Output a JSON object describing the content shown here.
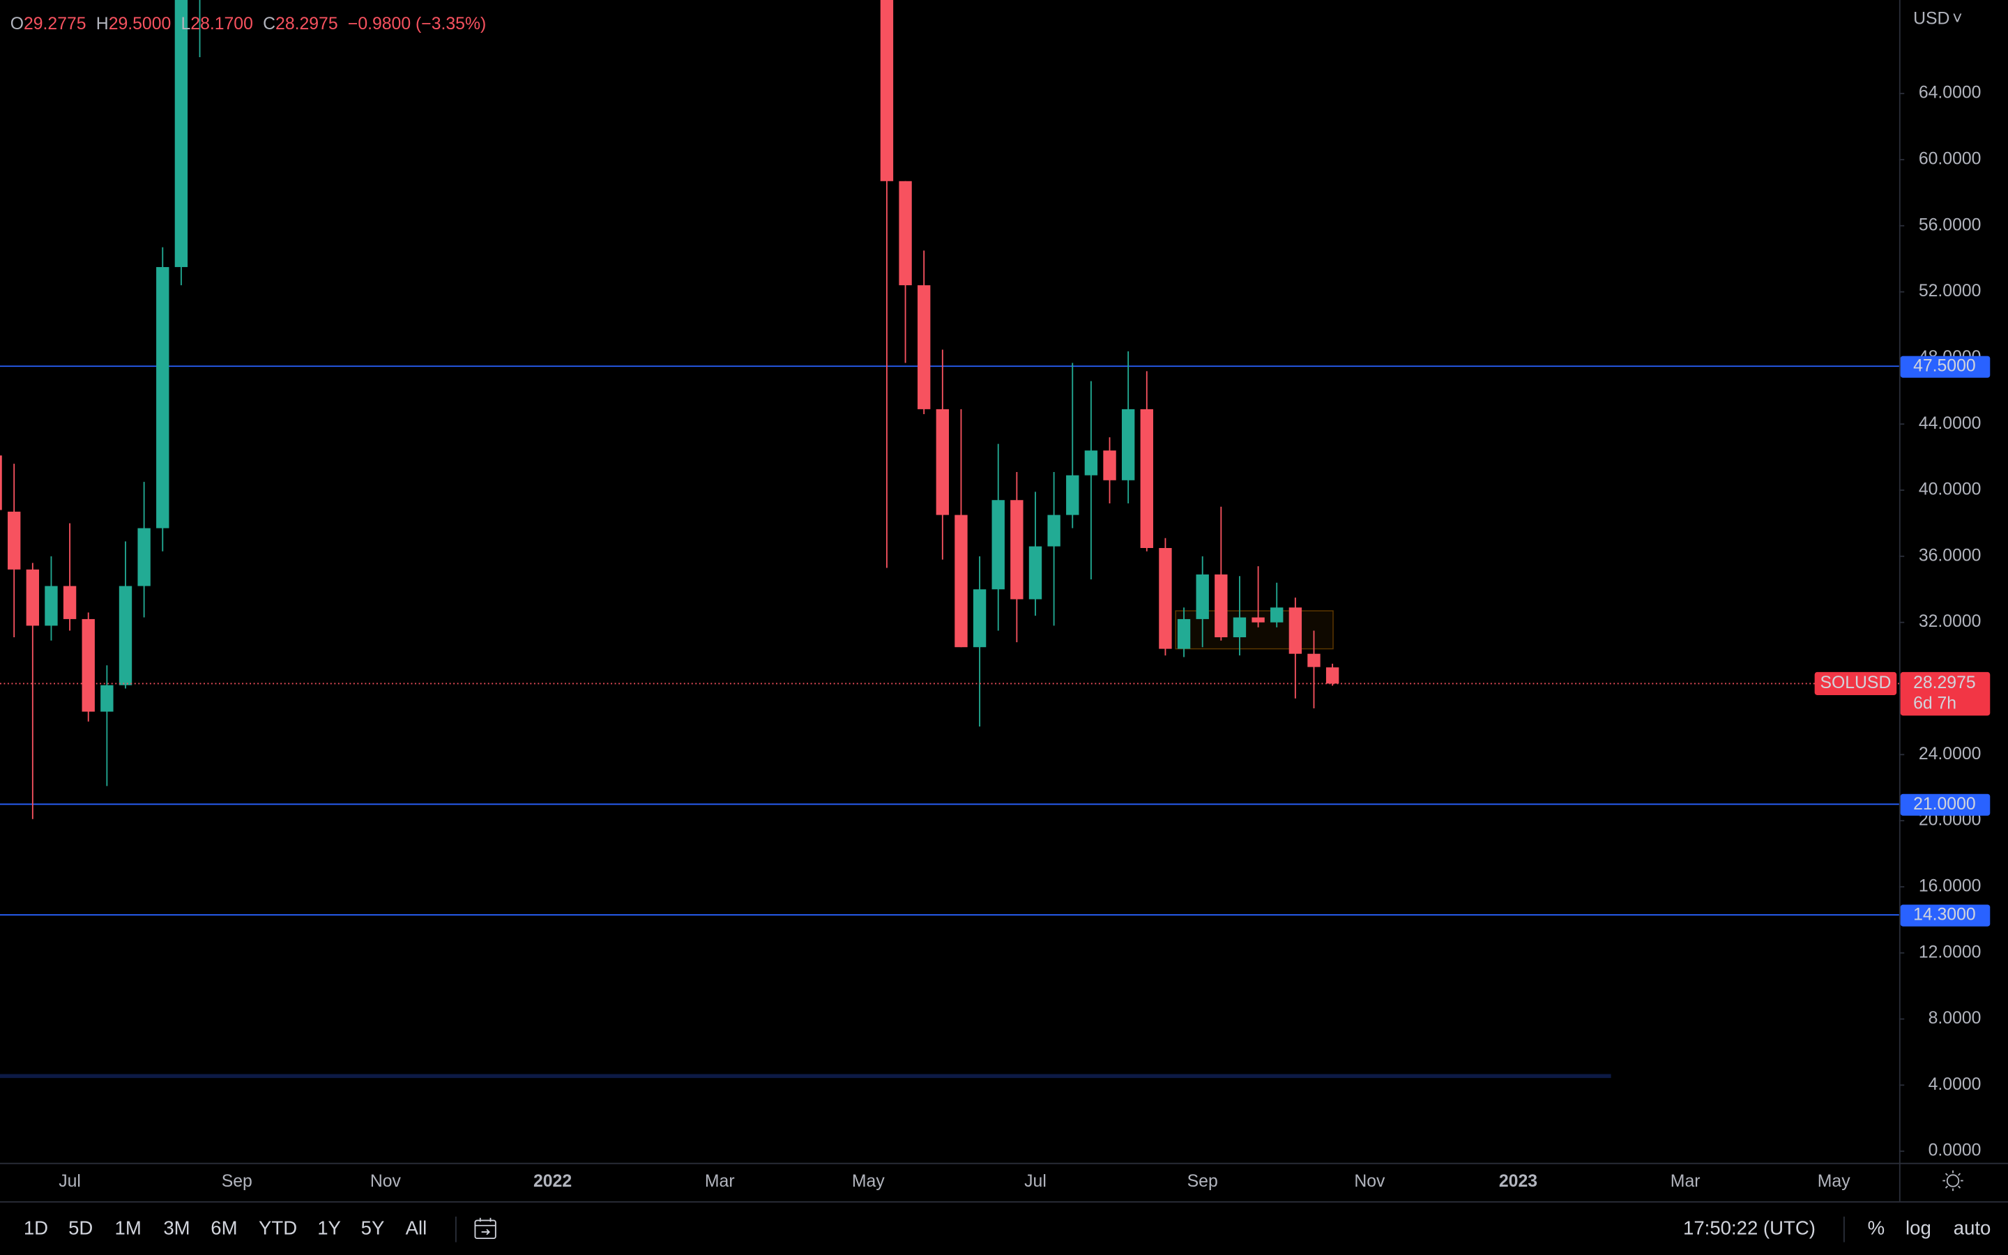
{
  "chart_data": {
    "type": "candlestick",
    "header": {
      "o_label": "O",
      "o": "29.2775",
      "h_label": "H",
      "h": "29.5000",
      "l_label": "L",
      "l": "28.1700",
      "c_label": "C",
      "c": "28.2975",
      "change": "−0.9800 (−3.35%)"
    },
    "currency": "USD",
    "categories": [
      null,
      null,
      null,
      null,
      "Jul",
      null,
      null,
      null,
      null,
      null,
      null,
      null,
      null,
      "Sep",
      null,
      null,
      null,
      null,
      null,
      null,
      null,
      "Nov",
      null,
      null,
      null,
      null,
      null,
      null,
      null,
      null,
      "2022",
      null,
      null,
      null,
      null,
      null,
      null,
      null,
      null,
      "Mar",
      null,
      null,
      null,
      null,
      null,
      null,
      null,
      "May",
      null,
      null,
      null,
      null,
      null,
      null,
      null,
      null,
      "Jul",
      null,
      null,
      null,
      null,
      null,
      null,
      null,
      null,
      "Sep",
      null,
      null,
      null,
      null,
      null,
      null,
      null,
      null,
      "Nov",
      null,
      null,
      null,
      null,
      null,
      null,
      null,
      "2023",
      null,
      null,
      null,
      null,
      null,
      null,
      null,
      null,
      "Mar",
      null,
      null,
      null,
      null,
      null,
      null,
      null,
      "May"
    ],
    "series": [
      {
        "name": "SOLUSD",
        "up_color": "#22ab94",
        "down_color": "#f7525f",
        "open": [
          42.1,
          38.7,
          35.2,
          31.8,
          34.2,
          32.2,
          26.6,
          28.2,
          34.2,
          37.7,
          53.5,
          72,
          null,
          null,
          null,
          null,
          null,
          null,
          null,
          null,
          null,
          null,
          null,
          null,
          null,
          null,
          null,
          null,
          null,
          null,
          null,
          null,
          null,
          null,
          null,
          null,
          null,
          null,
          null,
          null,
          null,
          null,
          null,
          null,
          null,
          null,
          null,
          null,
          72,
          58.7,
          52.4,
          44.9,
          38.5,
          30.5,
          34.0,
          39.4,
          33.4,
          36.6,
          38.5,
          40.9,
          42.4,
          40.6,
          44.9,
          36.5,
          30.4,
          32.2,
          34.9,
          31.1,
          32.3,
          32.0,
          32.9,
          30.1,
          29.2775,
          null,
          null,
          null,
          null,
          null,
          null,
          null,
          null,
          null,
          null,
          null,
          null,
          null,
          null,
          null,
          null,
          null,
          null,
          null,
          null,
          null,
          null,
          null,
          null,
          null,
          null,
          null
        ],
        "high": [
          42.5,
          41.6,
          35.6,
          36.0,
          38.0,
          32.6,
          29.4,
          36.9,
          40.5,
          54.7,
          75,
          82,
          null,
          null,
          null,
          null,
          null,
          null,
          null,
          null,
          null,
          null,
          null,
          null,
          null,
          null,
          null,
          null,
          null,
          null,
          null,
          null,
          null,
          null,
          null,
          null,
          null,
          null,
          null,
          null,
          null,
          null,
          null,
          null,
          null,
          null,
          null,
          null,
          80,
          58.7,
          54.5,
          48.5,
          44.9,
          36.0,
          42.8,
          41.1,
          39.9,
          41.1,
          47.7,
          46.6,
          43.2,
          48.4,
          47.2,
          37.1,
          32.9,
          36.0,
          39.0,
          34.8,
          35.4,
          34.4,
          33.5,
          31.5,
          29.5,
          null,
          null,
          null,
          null,
          null,
          null,
          null,
          null,
          null,
          null,
          null,
          null,
          null,
          null,
          null,
          null,
          null,
          null,
          null,
          null,
          null,
          null,
          null,
          null,
          null,
          null,
          null
        ],
        "low": [
          30.5,
          31.1,
          20.1,
          30.9,
          31.5,
          26.0,
          22.1,
          28.0,
          32.3,
          36.3,
          52.4,
          66.2,
          null,
          null,
          null,
          null,
          null,
          null,
          null,
          null,
          null,
          null,
          null,
          null,
          null,
          null,
          null,
          null,
          null,
          null,
          null,
          null,
          null,
          null,
          null,
          null,
          null,
          null,
          null,
          null,
          null,
          null,
          null,
          null,
          null,
          null,
          null,
          null,
          35.3,
          47.7,
          44.6,
          35.8,
          30.5,
          25.7,
          31.5,
          30.8,
          32.4,
          31.8,
          37.7,
          34.6,
          39.2,
          39.2,
          36.3,
          30.0,
          29.9,
          30.5,
          30.9,
          30.0,
          31.7,
          31.7,
          27.4,
          26.8,
          28.17,
          null,
          null,
          null,
          null,
          null,
          null,
          null,
          null,
          null,
          null,
          null,
          null,
          null,
          null,
          null,
          null,
          null,
          null,
          null,
          null,
          null,
          null,
          null,
          null,
          null,
          null,
          null
        ],
        "close": [
          38.8,
          35.2,
          31.8,
          34.2,
          32.2,
          26.6,
          28.2,
          34.2,
          37.7,
          53.5,
          72,
          78,
          null,
          null,
          null,
          null,
          null,
          null,
          null,
          null,
          null,
          null,
          null,
          null,
          null,
          null,
          null,
          null,
          null,
          null,
          null,
          null,
          null,
          null,
          null,
          null,
          null,
          null,
          null,
          null,
          null,
          null,
          null,
          null,
          null,
          null,
          null,
          null,
          58.7,
          52.4,
          44.9,
          38.5,
          30.5,
          34.0,
          39.4,
          33.4,
          36.6,
          38.5,
          40.9,
          42.4,
          40.6,
          44.9,
          36.5,
          30.4,
          32.2,
          34.9,
          31.1,
          32.3,
          32.0,
          32.9,
          30.1,
          29.3,
          28.2975,
          null,
          null,
          null,
          null,
          null,
          null,
          null,
          null,
          null,
          null,
          null,
          null,
          null,
          null,
          null,
          null,
          null,
          null,
          null,
          null,
          null,
          null,
          null,
          null,
          null,
          null,
          null
        ]
      }
    ],
    "last_price_label": "28.2975",
    "countdown": "6d 7h",
    "levels": [
      {
        "value": 47.5,
        "label": "47.5000"
      },
      {
        "value": 21,
        "label": "21.0000"
      },
      {
        "value": 14.3,
        "label": "14.3000"
      }
    ],
    "dim_level": 4.55,
    "box": {
      "top": 32.7,
      "bottom": 30.4
    },
    "ylim": [
      -0.7,
      69.66
    ],
    "yticks": [
      {
        "value": 0,
        "label": "0.0000"
      },
      {
        "value": 4,
        "label": "4.0000"
      },
      {
        "value": 8,
        "label": "8.0000"
      },
      {
        "value": 12,
        "label": "12.0000"
      },
      {
        "value": 16,
        "label": "16.0000"
      },
      {
        "value": 20,
        "label": "20.0000"
      },
      {
        "value": 24,
        "label": "24.0000"
      },
      {
        "value": 28,
        "label": "28.0000"
      },
      {
        "value": 32,
        "label": "32.0000"
      },
      {
        "value": 36,
        "label": "36.0000"
      },
      {
        "value": 40,
        "label": "40.0000"
      },
      {
        "value": 44,
        "label": "44.0000"
      },
      {
        "value": 48,
        "label": "48.0000"
      },
      {
        "value": 52,
        "label": "52.0000"
      },
      {
        "value": 56,
        "label": "56.0000"
      },
      {
        "value": 60,
        "label": "60.0000"
      },
      {
        "value": 64,
        "label": "64.0000"
      }
    ],
    "toolbar": {
      "ranges": [
        "1D",
        "5D",
        "1M",
        "3M",
        "6M",
        "YTD",
        "1Y",
        "5Y",
        "All"
      ],
      "time": "17:50:22 (UTC)",
      "percent": "%",
      "log": "log",
      "auto": "auto"
    }
  }
}
